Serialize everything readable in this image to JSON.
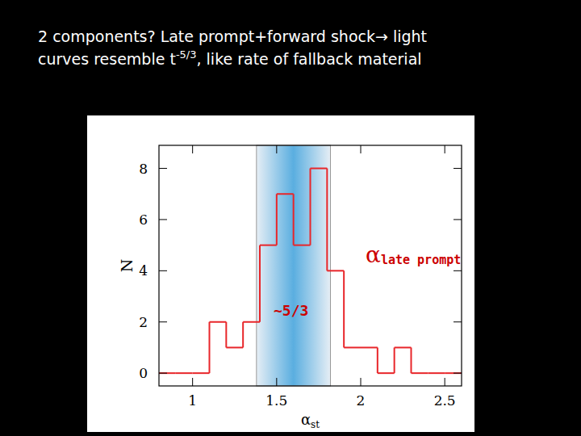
{
  "chart_data": {
    "type": "histogram",
    "title": [
      [
        {
          "text": "2 components?  Late prompt+forward shock→ light"
        }
      ],
      [
        {
          "text": "curves resemble t"
        },
        {
          "text": "-5/3",
          "sup": true
        },
        {
          "text": ", like rate of fallback material"
        }
      ]
    ],
    "bins": [
      0.8,
      0.9,
      1.0,
      1.1,
      1.2,
      1.3,
      1.4,
      1.5,
      1.6,
      1.7,
      1.8,
      1.9,
      2.0,
      2.1,
      2.2,
      2.3,
      2.4,
      2.5,
      2.6
    ],
    "values": [
      0,
      0,
      0,
      2,
      1,
      2,
      5,
      7,
      5,
      8,
      4,
      1,
      1,
      0,
      1,
      0,
      0,
      0
    ],
    "color": "#e8262a",
    "xlim": [
      0.8,
      2.6
    ],
    "ylim": [
      -0.5,
      8.9
    ],
    "xticks": [
      1,
      1.5,
      2,
      2.5
    ],
    "yticks": [
      0,
      2,
      4,
      6,
      8
    ],
    "x_label": {
      "symbol": "α",
      "subscript": "st"
    },
    "y_label": "N",
    "highlight_range": [
      1.38,
      1.82
    ],
    "annotations": [
      {
        "symbol": "α",
        "subscript": "late prompt"
      },
      {
        "text": "~5/3"
      }
    ]
  }
}
